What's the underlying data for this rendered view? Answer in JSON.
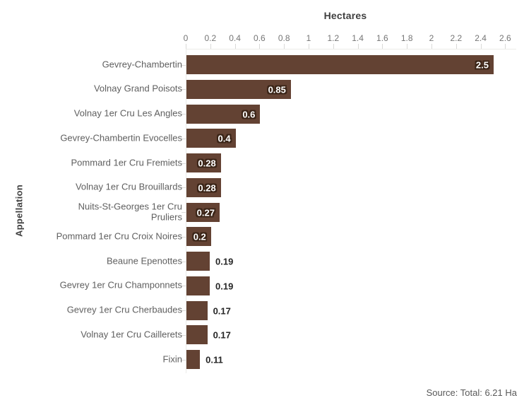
{
  "chart_data": {
    "type": "bar",
    "orientation": "horizontal",
    "title": "Hectares",
    "xlabel": "Hectares",
    "ylabel": "Appellation",
    "categories": [
      "Gevrey-Chambertin",
      "Volnay Grand Poisots",
      "Volnay 1er Cru Les Angles",
      "Gevrey-Chambertin Evocelles",
      "Pommard 1er Cru Fremiets",
      "Volnay 1er Cru Brouillards",
      "Nuits-St-Georges 1er Cru\nPruliers",
      "Pommard 1er Cru Croix Noires",
      "Beaune Epenottes",
      "Gevrey 1er Cru Champonnets",
      "Gevrey 1er Cru Cherbaudes",
      "Volnay 1er Cru Caillerets",
      "Fixin"
    ],
    "values": [
      2.5,
      0.85,
      0.6,
      0.4,
      0.28,
      0.28,
      0.27,
      0.2,
      0.19,
      0.19,
      0.17,
      0.17,
      0.11
    ],
    "value_labels": [
      "2.5",
      "0.85",
      "0.6",
      "0.4",
      "0.28",
      "0.28",
      "0.27",
      "0.2",
      "0.19",
      "0.19",
      "0.17",
      "0.17",
      "0.11"
    ],
    "x_ticks": [
      "0",
      "0.2",
      "0.4",
      "0.6",
      "0.8",
      "1",
      "1.2",
      "1.4",
      "1.6",
      "1.8",
      "2",
      "2.2",
      "2.4",
      "2.6"
    ],
    "xlim": [
      0,
      2.6
    ],
    "grid": false,
    "legend": false,
    "bar_color": "#634233",
    "value_label_outline_color": "#3a2417",
    "value_label_inside_color": "#ffffff",
    "value_label_outside_color": "#262626",
    "axis_text_color": "#757575",
    "category_text_color": "#5f5f5f",
    "source": "Source: Total: 6.21 Ha"
  }
}
